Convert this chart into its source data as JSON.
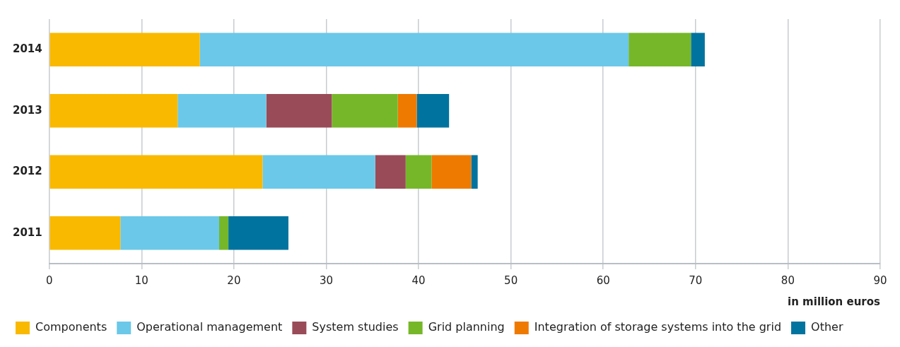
{
  "chart_data": {
    "type": "bar",
    "orientation": "horizontal",
    "stacked": true,
    "xlabel": "in million euros",
    "categories": [
      "2014",
      "2013",
      "2012",
      "2011"
    ],
    "series": [
      {
        "name": "Components",
        "color": "#f9b900",
        "values": [
          16.3,
          13.9,
          23.1,
          7.7
        ]
      },
      {
        "name": "Operational management",
        "color": "#6bc8e8",
        "values": [
          46.45,
          9.6,
          12.2,
          10.7
        ]
      },
      {
        "name": "System studies",
        "color": "#994b58",
        "values": [
          0,
          7.1,
          3.3,
          0
        ]
      },
      {
        "name": "Grid planning",
        "color": "#76b72a",
        "values": [
          6.75,
          7.15,
          2.8,
          1.0
        ]
      },
      {
        "name": "Integration of storage systems into the grid",
        "color": "#ee7a00",
        "values": [
          0,
          2.05,
          4.3,
          0
        ]
      },
      {
        "name": "Other",
        "color": "#00739f",
        "values": [
          1.5,
          3.5,
          0.7,
          6.5
        ]
      }
    ],
    "xlim": [
      0,
      90
    ],
    "xticks": [
      0,
      10,
      20,
      30,
      40,
      50,
      60,
      70,
      80,
      90
    ],
    "grid": "x",
    "legend": "bottom"
  }
}
